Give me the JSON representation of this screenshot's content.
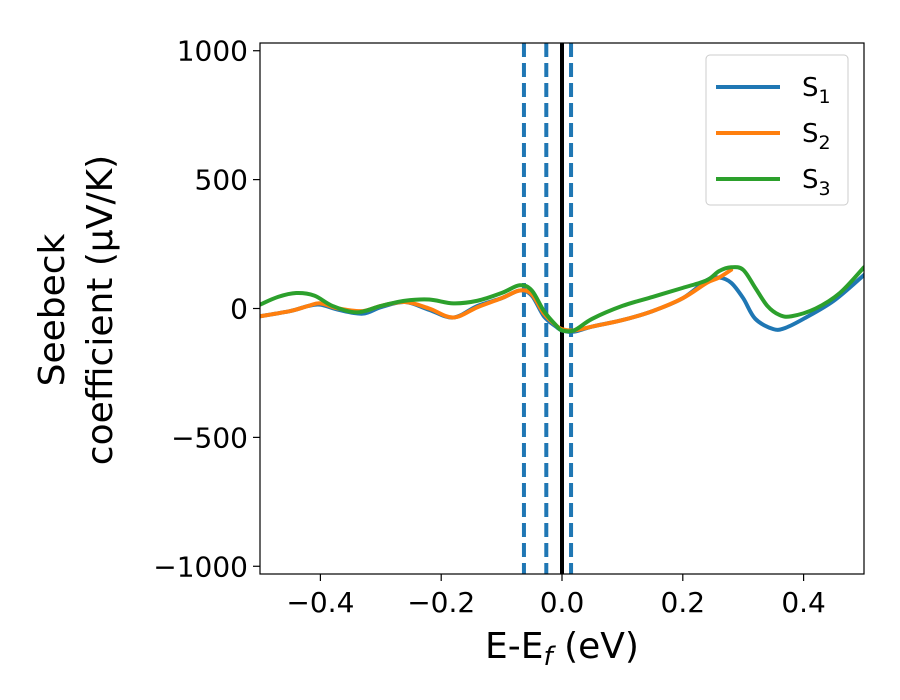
{
  "chart_data": {
    "type": "line",
    "xlabel": "E-E",
    "xlabel_sub": "f",
    "xlabel_unit": " (eV)",
    "ylabel_line1": "Seebeck",
    "ylabel_line2": "coefficient  (μV/K)",
    "xlim": [
      -0.5,
      0.5
    ],
    "ylim": [
      -1030,
      1030
    ],
    "xticks": [
      -0.4,
      -0.2,
      0.0,
      0.2,
      0.4
    ],
    "xtick_labels": [
      "−0.4",
      "−0.2",
      "0.0",
      "0.2",
      "0.4"
    ],
    "yticks": [
      -1000,
      -500,
      0,
      500,
      1000
    ],
    "ytick_labels": [
      "−1000",
      "−500",
      "0",
      "500",
      "1000"
    ],
    "grid": false,
    "legend_position": "top-right",
    "vlines": [
      {
        "x": -0.063,
        "style": "dashed",
        "color": "#1f77b4"
      },
      {
        "x": -0.026,
        "style": "dashed",
        "color": "#1f77b4"
      },
      {
        "x": 0.015,
        "style": "dashed",
        "color": "#1f77b4"
      },
      {
        "x": 0.0,
        "style": "solid",
        "color": "#000000"
      }
    ],
    "series": [
      {
        "name": "S",
        "sub": "1",
        "color": "#1f77b4",
        "x": [
          -0.5,
          -0.45,
          -0.42,
          -0.4,
          -0.37,
          -0.33,
          -0.3,
          -0.26,
          -0.22,
          -0.18,
          -0.14,
          -0.1,
          -0.07,
          -0.05,
          -0.03,
          -0.01,
          0.0,
          0.02,
          0.05,
          0.1,
          0.15,
          0.2,
          0.24,
          0.26,
          0.28,
          0.3,
          0.32,
          0.35,
          0.37,
          0.4,
          0.45,
          0.5
        ],
        "y": [
          -30,
          -10,
          10,
          15,
          -5,
          -20,
          5,
          25,
          -5,
          -35,
          10,
          40,
          70,
          50,
          -30,
          -70,
          -85,
          -90,
          -70,
          -45,
          -10,
          40,
          110,
          120,
          100,
          40,
          -40,
          -80,
          -75,
          -40,
          30,
          130
        ]
      },
      {
        "name": "S",
        "sub": "2",
        "color": "#ff7f0e",
        "x": [
          -0.5,
          -0.45,
          -0.42,
          -0.4,
          -0.37,
          -0.33,
          -0.3,
          -0.26,
          -0.22,
          -0.18,
          -0.14,
          -0.1,
          -0.07,
          -0.05,
          -0.03,
          -0.01,
          0.0,
          0.02,
          0.05,
          0.1,
          0.15,
          0.2,
          0.24,
          0.26,
          0.28
        ],
        "y": [
          -30,
          -10,
          10,
          20,
          0,
          -10,
          10,
          25,
          0,
          -35,
          5,
          40,
          70,
          55,
          -20,
          -65,
          -80,
          -85,
          -70,
          -45,
          -10,
          40,
          100,
          120,
          150
        ]
      },
      {
        "name": "S",
        "sub": "3",
        "color": "#2ca02c",
        "x": [
          -0.5,
          -0.47,
          -0.44,
          -0.41,
          -0.38,
          -0.34,
          -0.3,
          -0.26,
          -0.22,
          -0.18,
          -0.14,
          -0.1,
          -0.07,
          -0.05,
          -0.03,
          -0.01,
          0.0,
          0.02,
          0.05,
          0.1,
          0.15,
          0.2,
          0.24,
          0.26,
          0.28,
          0.3,
          0.32,
          0.34,
          0.36,
          0.38,
          0.42,
          0.46,
          0.5
        ],
        "y": [
          15,
          45,
          60,
          50,
          10,
          -15,
          10,
          30,
          35,
          20,
          30,
          60,
          90,
          70,
          -10,
          -65,
          -85,
          -85,
          -40,
          10,
          45,
          80,
          110,
          145,
          160,
          150,
          80,
          10,
          -25,
          -30,
          0,
          60,
          160
        ]
      }
    ]
  }
}
